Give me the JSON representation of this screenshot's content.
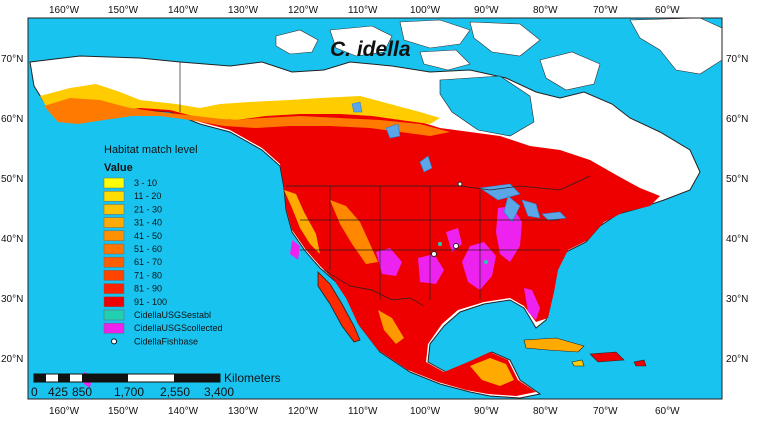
{
  "map": {
    "title": "C. idella",
    "colors": {
      "ocean": "#19c3f0",
      "land_unsuitable": "#ffffff",
      "border": "#222222",
      "lakes": "#5aa6e6",
      "lakes_stroke": "#2a7fd4"
    },
    "top_ticks": [
      "160°W",
      "150°W",
      "140°W",
      "130°W",
      "120°W",
      "110°W",
      "100°W",
      "90°W",
      "80°W",
      "70°W",
      "60°W"
    ],
    "bottom_ticks": [
      "160°W",
      "150°W",
      "140°W",
      "130°W",
      "120°W",
      "110°W",
      "100°W",
      "90°W",
      "80°W",
      "70°W",
      "60°W"
    ],
    "left_ticks": [
      "70°N",
      "60°N",
      "50°N",
      "40°N",
      "30°N",
      "20°N"
    ],
    "right_ticks": [
      "70°N",
      "60°N",
      "50°N",
      "40°N",
      "30°N",
      "20°N"
    ]
  },
  "legend": {
    "heading": "Habitat match level",
    "subheading": "Value",
    "items": [
      {
        "label": "3 - 10",
        "color": "#ffff00"
      },
      {
        "label": "11 - 20",
        "color": "#ffdd00"
      },
      {
        "label": "21 - 30",
        "color": "#ffc400"
      },
      {
        "label": "31 - 40",
        "color": "#ffaa00"
      },
      {
        "label": "41 - 50",
        "color": "#ff9100"
      },
      {
        "label": "51 - 60",
        "color": "#ff7700"
      },
      {
        "label": "61 - 70",
        "color": "#ff5e00"
      },
      {
        "label": "71 - 80",
        "color": "#ff4400"
      },
      {
        "label": "81 - 90",
        "color": "#ff2200"
      },
      {
        "label": "91 - 100",
        "color": "#ee0000"
      },
      {
        "label": "CidellaUSGSestabl",
        "color": "#20d0b0"
      },
      {
        "label": "CidellaUSGScollected",
        "color": "#ee22ee"
      },
      {
        "label": "CidellaFishbase",
        "color": "point"
      }
    ]
  },
  "scale_bar": {
    "unit": "Kilometers",
    "labels": [
      "0",
      "425",
      "850",
      "1,700",
      "2,550",
      "3,400"
    ]
  }
}
